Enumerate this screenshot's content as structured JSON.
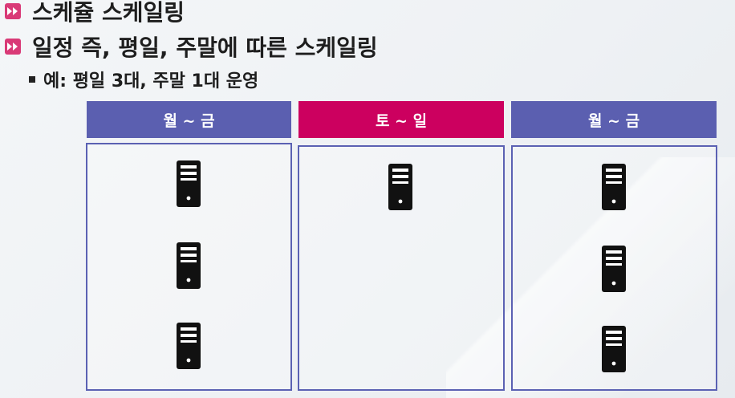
{
  "bullets": [
    {
      "text": "스케쥴 스케일링",
      "icon": "fast-forward-icon"
    },
    {
      "text": "일정 즉, 평일, 주말에 따른 스케일링",
      "icon": "fast-forward-icon"
    }
  ],
  "sub_bullet": {
    "text": "예: 평일 3대, 주말 1대 운영"
  },
  "columns": [
    {
      "label": "월 ~ 금",
      "color": "#5b5fb0",
      "servers": 3
    },
    {
      "label": "토 ~ 일",
      "color": "#cc005f",
      "servers": 1
    },
    {
      "label": "월 ~ 금",
      "color": "#5b5fb0",
      "servers": 3
    }
  ],
  "colors": {
    "accent_pink": "#d93a77",
    "box_border": "#5b61b3",
    "server": "#111111"
  }
}
